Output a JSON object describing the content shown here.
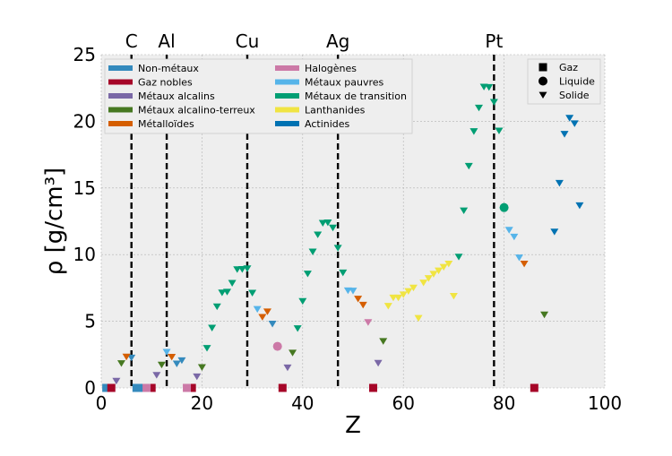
{
  "chart_data": {
    "type": "scatter",
    "xlabel": "Z",
    "ylabel": "ρ [g/cm³]",
    "xlim": [
      0,
      100
    ],
    "ylim": [
      0,
      25
    ],
    "xticks": [
      "0",
      "20",
      "40",
      "60",
      "80",
      "100"
    ],
    "yticks": [
      "0",
      "5",
      "10",
      "15",
      "20",
      "25"
    ],
    "grid": true,
    "reference_lines": [
      {
        "label": "C",
        "x": 6
      },
      {
        "label": "Al",
        "x": 13
      },
      {
        "label": "Cu",
        "x": 29
      },
      {
        "label": "Ag",
        "x": 47
      },
      {
        "label": "Pt",
        "x": 78
      }
    ],
    "category_legend": [
      {
        "name": "Non-métaux",
        "color": "#348ABD"
      },
      {
        "name": "Gaz nobles",
        "color": "#A60628"
      },
      {
        "name": "Métaux alcalins",
        "color": "#7A68A6"
      },
      {
        "name": "Métaux alcalino-terreux",
        "color": "#467821"
      },
      {
        "name": "Métalloïdes",
        "color": "#D55E00"
      },
      {
        "name": "Halogènes",
        "color": "#CC79A7"
      },
      {
        "name": "Métaux pauvres",
        "color": "#56B4E9"
      },
      {
        "name": "Métaux de transition",
        "color": "#009E73"
      },
      {
        "name": "Lanthanides",
        "color": "#F0E442"
      },
      {
        "name": "Actinides",
        "color": "#0072B2"
      }
    ],
    "category_legend_placement": "top-left",
    "state_legend": [
      {
        "name": "Gaz",
        "marker": "square"
      },
      {
        "name": "Liquide",
        "marker": "circle"
      },
      {
        "name": "Solide",
        "marker": "triangle-down"
      }
    ],
    "state_legend_placement": "top-right",
    "series": [
      {
        "color": "#348ABD",
        "points": [
          {
            "x": 1,
            "y": 0,
            "m": "square"
          },
          {
            "x": 6,
            "y": 2.27,
            "m": "triangle-down"
          },
          {
            "x": 7,
            "y": 0,
            "m": "square"
          },
          {
            "x": 8,
            "y": 0,
            "m": "square"
          },
          {
            "x": 15,
            "y": 1.82,
            "m": "triangle-down"
          },
          {
            "x": 16,
            "y": 2.07,
            "m": "triangle-down"
          },
          {
            "x": 34,
            "y": 4.81,
            "m": "triangle-down"
          }
        ]
      },
      {
        "color": "#A60628",
        "points": [
          {
            "x": 2,
            "y": 0,
            "m": "square"
          },
          {
            "x": 10,
            "y": 0,
            "m": "square"
          },
          {
            "x": 18,
            "y": 0,
            "m": "square"
          },
          {
            "x": 36,
            "y": 0,
            "m": "square"
          },
          {
            "x": 54,
            "y": 0,
            "m": "square"
          },
          {
            "x": 86,
            "y": 0,
            "m": "square"
          }
        ]
      },
      {
        "color": "#7A68A6",
        "points": [
          {
            "x": 3,
            "y": 0.53,
            "m": "triangle-down"
          },
          {
            "x": 11,
            "y": 0.97,
            "m": "triangle-down"
          },
          {
            "x": 19,
            "y": 0.86,
            "m": "triangle-down"
          },
          {
            "x": 37,
            "y": 1.53,
            "m": "triangle-down"
          },
          {
            "x": 55,
            "y": 1.87,
            "m": "triangle-down"
          }
        ]
      },
      {
        "color": "#467821",
        "points": [
          {
            "x": 4,
            "y": 1.85,
            "m": "triangle-down"
          },
          {
            "x": 12,
            "y": 1.74,
            "m": "triangle-down"
          },
          {
            "x": 20,
            "y": 1.55,
            "m": "triangle-down"
          },
          {
            "x": 38,
            "y": 2.64,
            "m": "triangle-down"
          },
          {
            "x": 56,
            "y": 3.51,
            "m": "triangle-down"
          },
          {
            "x": 88,
            "y": 5.5,
            "m": "triangle-down"
          }
        ]
      },
      {
        "color": "#D55E00",
        "points": [
          {
            "x": 5,
            "y": 2.34,
            "m": "triangle-down"
          },
          {
            "x": 14,
            "y": 2.33,
            "m": "triangle-down"
          },
          {
            "x": 32,
            "y": 5.32,
            "m": "triangle-down"
          },
          {
            "x": 33,
            "y": 5.73,
            "m": "triangle-down"
          },
          {
            "x": 51,
            "y": 6.69,
            "m": "triangle-down"
          },
          {
            "x": 52,
            "y": 6.23,
            "m": "triangle-down"
          },
          {
            "x": 84,
            "y": 9.32,
            "m": "triangle-down"
          }
        ]
      },
      {
        "color": "#CC79A7",
        "points": [
          {
            "x": 9,
            "y": 0,
            "m": "square"
          },
          {
            "x": 17,
            "y": 0,
            "m": "square"
          },
          {
            "x": 35,
            "y": 3.12,
            "m": "circle"
          },
          {
            "x": 53,
            "y": 4.93,
            "m": "triangle-down"
          }
        ]
      },
      {
        "color": "#56B4E9",
        "points": [
          {
            "x": 13,
            "y": 2.7,
            "m": "triangle-down"
          },
          {
            "x": 31,
            "y": 5.91,
            "m": "triangle-down"
          },
          {
            "x": 49,
            "y": 7.31,
            "m": "triangle-down"
          },
          {
            "x": 50,
            "y": 7.29,
            "m": "triangle-down"
          },
          {
            "x": 81,
            "y": 11.85,
            "m": "triangle-down"
          },
          {
            "x": 82,
            "y": 11.34,
            "m": "triangle-down"
          },
          {
            "x": 83,
            "y": 9.78,
            "m": "triangle-down"
          }
        ]
      },
      {
        "color": "#009E73",
        "points": [
          {
            "x": 21,
            "y": 2.99,
            "m": "triangle-down"
          },
          {
            "x": 22,
            "y": 4.51,
            "m": "triangle-down"
          },
          {
            "x": 23,
            "y": 6.11,
            "m": "triangle-down"
          },
          {
            "x": 24,
            "y": 7.15,
            "m": "triangle-down"
          },
          {
            "x": 25,
            "y": 7.21,
            "m": "triangle-down"
          },
          {
            "x": 26,
            "y": 7.87,
            "m": "triangle-down"
          },
          {
            "x": 27,
            "y": 8.9,
            "m": "triangle-down"
          },
          {
            "x": 28,
            "y": 8.91,
            "m": "triangle-down"
          },
          {
            "x": 29,
            "y": 8.96,
            "m": "triangle-down"
          },
          {
            "x": 30,
            "y": 7.13,
            "m": "triangle-down"
          },
          {
            "x": 39,
            "y": 4.47,
            "m": "triangle-down"
          },
          {
            "x": 40,
            "y": 6.51,
            "m": "triangle-down"
          },
          {
            "x": 41,
            "y": 8.57,
            "m": "triangle-down"
          },
          {
            "x": 42,
            "y": 10.22,
            "m": "triangle-down"
          },
          {
            "x": 43,
            "y": 11.5,
            "m": "triangle-down"
          },
          {
            "x": 44,
            "y": 12.37,
            "m": "triangle-down"
          },
          {
            "x": 45,
            "y": 12.41,
            "m": "triangle-down"
          },
          {
            "x": 46,
            "y": 12.02,
            "m": "triangle-down"
          },
          {
            "x": 47,
            "y": 10.5,
            "m": "triangle-down"
          },
          {
            "x": 48,
            "y": 8.65,
            "m": "triangle-down"
          },
          {
            "x": 71,
            "y": 9.84,
            "m": "triangle-down"
          },
          {
            "x": 72,
            "y": 13.31,
            "m": "triangle-down"
          },
          {
            "x": 73,
            "y": 16.65,
            "m": "triangle-down"
          },
          {
            "x": 74,
            "y": 19.25,
            "m": "triangle-down"
          },
          {
            "x": 75,
            "y": 21.02,
            "m": "triangle-down"
          },
          {
            "x": 76,
            "y": 22.59,
            "m": "triangle-down"
          },
          {
            "x": 77,
            "y": 22.56,
            "m": "triangle-down"
          },
          {
            "x": 78,
            "y": 21.45,
            "m": "triangle-down"
          },
          {
            "x": 79,
            "y": 19.3,
            "m": "triangle-down"
          },
          {
            "x": 80,
            "y": 13.53,
            "m": "circle"
          }
        ]
      },
      {
        "color": "#F0E442",
        "points": [
          {
            "x": 57,
            "y": 6.15,
            "m": "triangle-down"
          },
          {
            "x": 58,
            "y": 6.77,
            "m": "triangle-down"
          },
          {
            "x": 59,
            "y": 6.77,
            "m": "triangle-down"
          },
          {
            "x": 60,
            "y": 7.01,
            "m": "triangle-down"
          },
          {
            "x": 61,
            "y": 7.26,
            "m": "triangle-down"
          },
          {
            "x": 62,
            "y": 7.52,
            "m": "triangle-down"
          },
          {
            "x": 63,
            "y": 5.24,
            "m": "triangle-down"
          },
          {
            "x": 64,
            "y": 7.9,
            "m": "triangle-down"
          },
          {
            "x": 65,
            "y": 8.23,
            "m": "triangle-down"
          },
          {
            "x": 66,
            "y": 8.55,
            "m": "triangle-down"
          },
          {
            "x": 67,
            "y": 8.8,
            "m": "triangle-down"
          },
          {
            "x": 68,
            "y": 9.07,
            "m": "triangle-down"
          },
          {
            "x": 69,
            "y": 9.32,
            "m": "triangle-down"
          },
          {
            "x": 70,
            "y": 6.9,
            "m": "triangle-down"
          }
        ]
      },
      {
        "color": "#0072B2",
        "points": [
          {
            "x": 90,
            "y": 11.72,
            "m": "triangle-down"
          },
          {
            "x": 91,
            "y": 15.37,
            "m": "triangle-down"
          },
          {
            "x": 92,
            "y": 19.05,
            "m": "triangle-down"
          },
          {
            "x": 93,
            "y": 20.25,
            "m": "triangle-down"
          },
          {
            "x": 94,
            "y": 19.84,
            "m": "triangle-down"
          },
          {
            "x": 95,
            "y": 13.69,
            "m": "triangle-down"
          }
        ]
      }
    ],
    "colors": {
      "plot_background": "#EEEEEE",
      "grid": "#B2B2B2",
      "reference_line": "#000000"
    }
  }
}
